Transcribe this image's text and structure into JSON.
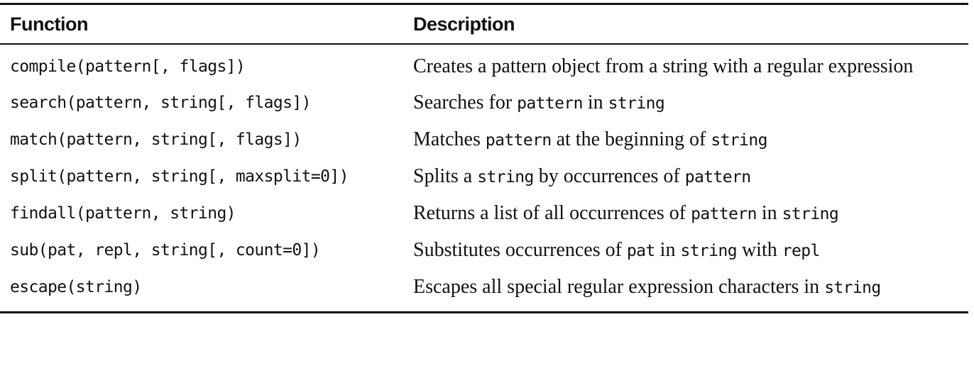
{
  "table": {
    "headers": {
      "function": "Function",
      "description": "Description"
    },
    "rows": [
      {
        "function": "compile(pattern[, flags])",
        "description": [
          {
            "text": "Creates a pattern object from a string with a regular expression",
            "code": false
          }
        ]
      },
      {
        "function": "search(pattern, string[, flags])",
        "description": [
          {
            "text": "Searches for ",
            "code": false
          },
          {
            "text": "pattern",
            "code": true
          },
          {
            "text": " in ",
            "code": false
          },
          {
            "text": "string",
            "code": true
          }
        ]
      },
      {
        "function": "match(pattern, string[, flags])",
        "description": [
          {
            "text": "Matches ",
            "code": false
          },
          {
            "text": "pattern",
            "code": true
          },
          {
            "text": " at the beginning of ",
            "code": false
          },
          {
            "text": "string",
            "code": true
          }
        ]
      },
      {
        "function": "split(pattern, string[, maxsplit=0])",
        "description": [
          {
            "text": "Splits a ",
            "code": false
          },
          {
            "text": "string",
            "code": true
          },
          {
            "text": " by occurrences of ",
            "code": false
          },
          {
            "text": "pattern",
            "code": true
          }
        ]
      },
      {
        "function": "findall(pattern, string)",
        "description": [
          {
            "text": "Returns a list of all occurrences of ",
            "code": false
          },
          {
            "text": "pattern",
            "code": true
          },
          {
            "text": " in ",
            "code": false
          },
          {
            "text": "string",
            "code": true
          }
        ]
      },
      {
        "function": "sub(pat, repl, string[, count=0])",
        "description": [
          {
            "text": "Substitutes occurrences of ",
            "code": false
          },
          {
            "text": "pat",
            "code": true
          },
          {
            "text": " in ",
            "code": false
          },
          {
            "text": "string",
            "code": true
          },
          {
            "text": " with ",
            "code": false
          },
          {
            "text": "repl",
            "code": true
          }
        ]
      },
      {
        "function": "escape(string)",
        "description": [
          {
            "text": "Escapes all special regular expression characters in ",
            "code": false
          },
          {
            "text": "string",
            "code": true
          }
        ]
      }
    ]
  }
}
